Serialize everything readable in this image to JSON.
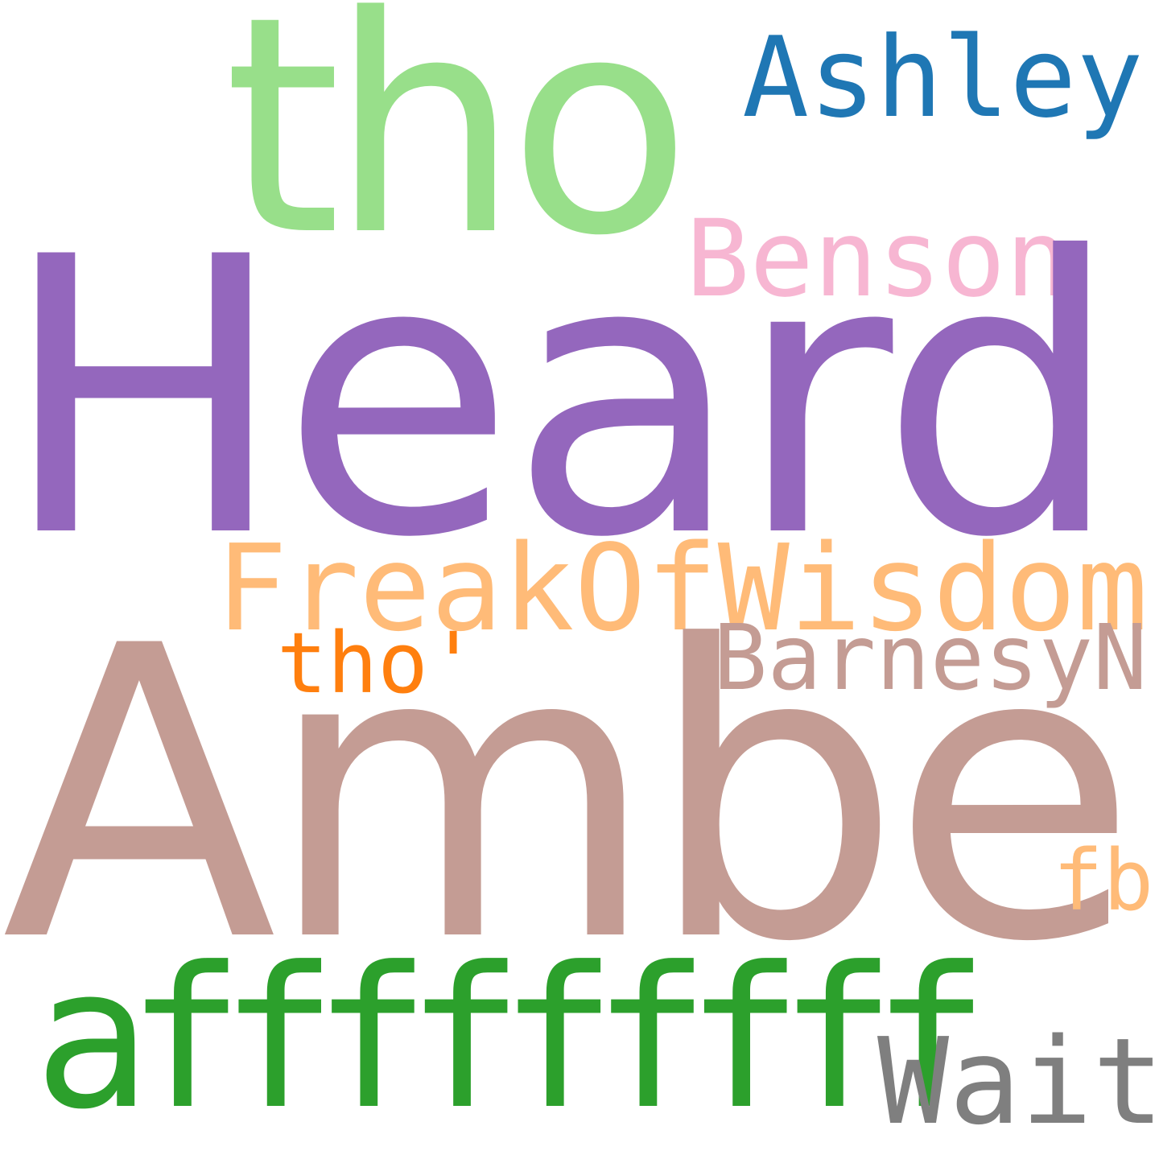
{
  "words": {
    "heard": {
      "text": "Heard",
      "color": "#9467bd"
    },
    "amber": {
      "text": "Amber",
      "color": "#c49c94"
    },
    "tho_large": {
      "text": "tho",
      "color": "#98df8a"
    },
    "ashley": {
      "text": "Ashley",
      "color": "#1f77b4"
    },
    "benson": {
      "text": "Benson",
      "color": "#f7b6d2"
    },
    "freak": {
      "text": "FreakOfWisdom",
      "color": "#ffbb78"
    },
    "barnesy": {
      "text": "BarnesyN",
      "color": "#c49c94"
    },
    "tho_small": {
      "text": "tho'",
      "color": "#ff7f0e"
    },
    "fb": {
      "text": "fb",
      "color": "#ffbb78"
    },
    "afff": {
      "text": "afffffffff",
      "color": "#2ca02c"
    },
    "wait": {
      "text": "Wait",
      "color": "#7f7f7f"
    }
  }
}
